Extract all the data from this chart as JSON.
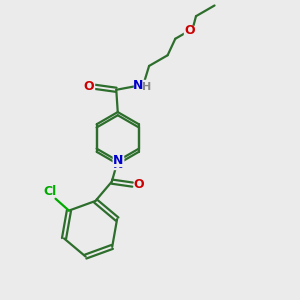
{
  "bg_color": "#ebebeb",
  "bond_color": "#2d6e2d",
  "bond_width": 1.6,
  "O_color": "#cc0000",
  "N_color": "#0000cc",
  "Cl_color": "#00aa00",
  "H_color": "#888888",
  "figsize": [
    3.0,
    3.0
  ],
  "dpi": 100,
  "xlim": [
    0,
    10
  ],
  "ylim": [
    0,
    10
  ]
}
